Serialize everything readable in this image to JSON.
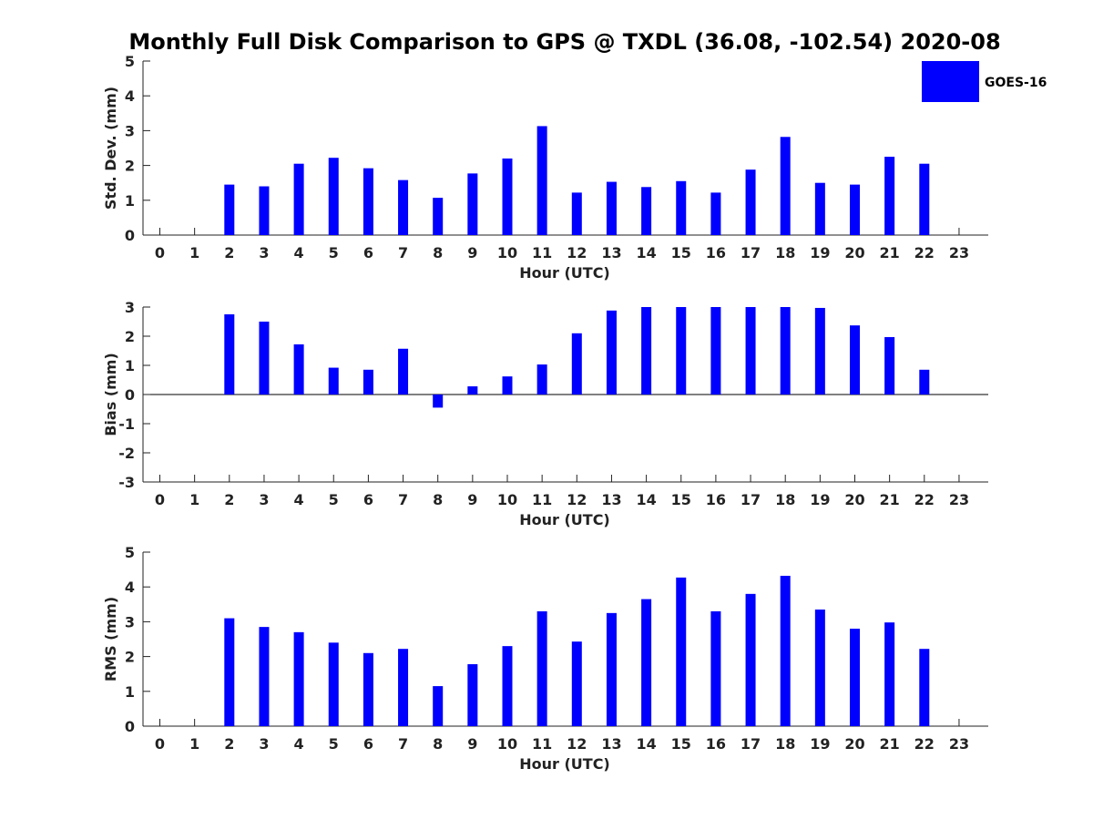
{
  "title": "Monthly Full Disk Comparison to GPS @ TXDL (36.08, -102.54) 2020-08",
  "legend": {
    "label": "GOES-16",
    "color": "#0000ff",
    "placement": "top-right"
  },
  "chart_data": [
    {
      "type": "bar",
      "ylabel": "Std. Dev. (mm)",
      "xlabel": "Hour (UTC)",
      "ylim": [
        0,
        5
      ],
      "yticks": [
        0,
        1,
        2,
        3,
        4,
        5
      ],
      "categories": [
        "0",
        "1",
        "2",
        "3",
        "4",
        "5",
        "6",
        "7",
        "8",
        "9",
        "10",
        "11",
        "12",
        "13",
        "14",
        "15",
        "16",
        "17",
        "18",
        "19",
        "20",
        "21",
        "22",
        "23"
      ],
      "series": [
        {
          "name": "GOES-16",
          "values": [
            null,
            null,
            1.45,
            1.4,
            2.05,
            2.22,
            1.92,
            1.58,
            1.07,
            1.77,
            2.2,
            3.13,
            1.22,
            1.53,
            1.38,
            1.55,
            1.22,
            1.88,
            2.82,
            1.5,
            1.45,
            2.25,
            2.05,
            null
          ]
        }
      ]
    },
    {
      "type": "bar",
      "ylabel": "Bias (mm)",
      "xlabel": "Hour (UTC)",
      "ylim": [
        -3,
        3
      ],
      "yticks": [
        -3,
        -2,
        -1,
        0,
        1,
        2,
        3
      ],
      "categories": [
        "0",
        "1",
        "2",
        "3",
        "4",
        "5",
        "6",
        "7",
        "8",
        "9",
        "10",
        "11",
        "12",
        "13",
        "14",
        "15",
        "16",
        "17",
        "18",
        "19",
        "20",
        "21",
        "22",
        "23"
      ],
      "series": [
        {
          "name": "GOES-16",
          "values": [
            null,
            null,
            2.75,
            2.5,
            1.72,
            0.92,
            0.85,
            1.57,
            -0.45,
            0.28,
            0.62,
            1.03,
            2.1,
            2.88,
            3.0,
            3.0,
            3.0,
            3.0,
            3.0,
            2.97,
            2.37,
            1.97,
            0.85,
            null
          ]
        }
      ]
    },
    {
      "type": "bar",
      "ylabel": "RMS (mm)",
      "xlabel": "Hour (UTC)",
      "ylim": [
        0,
        5
      ],
      "yticks": [
        0,
        1,
        2,
        3,
        4,
        5
      ],
      "categories": [
        "0",
        "1",
        "2",
        "3",
        "4",
        "5",
        "6",
        "7",
        "8",
        "9",
        "10",
        "11",
        "12",
        "13",
        "14",
        "15",
        "16",
        "17",
        "18",
        "19",
        "20",
        "21",
        "22",
        "23"
      ],
      "series": [
        {
          "name": "GOES-16",
          "values": [
            null,
            null,
            3.1,
            2.85,
            2.7,
            2.4,
            2.1,
            2.22,
            1.15,
            1.78,
            2.3,
            3.3,
            2.43,
            3.25,
            3.65,
            4.27,
            3.3,
            3.8,
            4.32,
            3.35,
            2.8,
            2.98,
            2.22,
            null
          ]
        }
      ]
    }
  ]
}
